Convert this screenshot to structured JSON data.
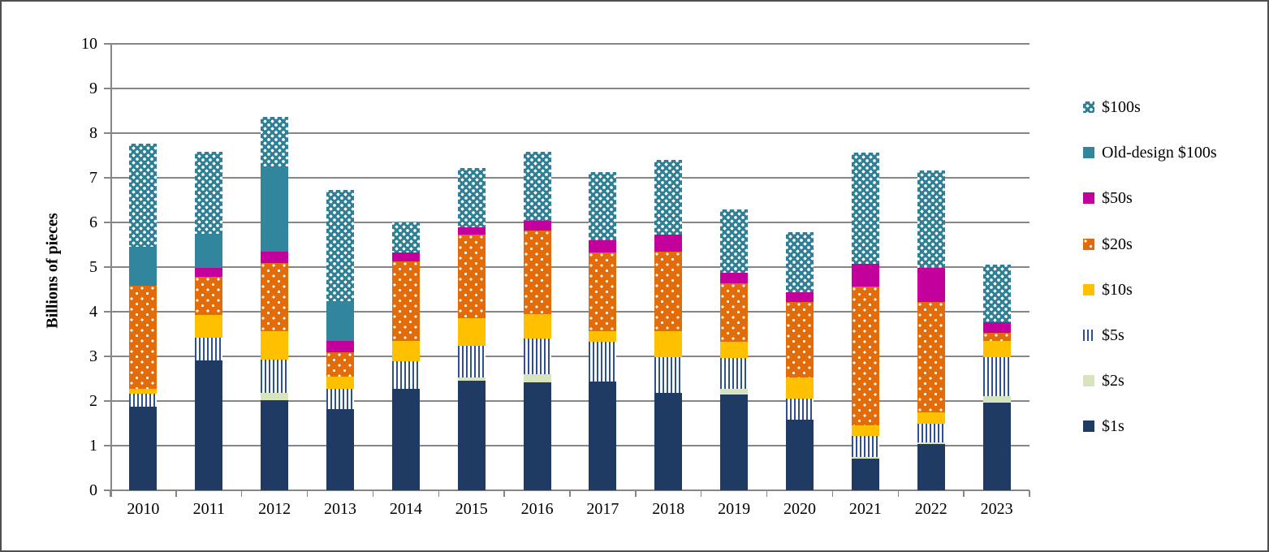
{
  "figure": {
    "y_axis_title": "Billions of pieces"
  },
  "colors": {
    "ones_navy": "#1f3b63",
    "twos_pale_green": "#d7e4bd",
    "fives_stripe_blue": "#2e5191",
    "tens_yellow": "#ffc000",
    "twenties_orange": "#e36c0a",
    "fifties_magenta": "#c4009c",
    "old_design_hundreds_teal": "#31859c",
    "hundreds_teal": "#2f8094",
    "gridline_gray": "#868686",
    "frame_gray": "#4f4f4f"
  },
  "chart_data": {
    "type": "bar",
    "stacked": true,
    "title": "",
    "xlabel": "",
    "ylabel": "Billions of pieces",
    "ylim": [
      0,
      10
    ],
    "y_tick_interval": 1,
    "grid": "horizontal",
    "legend_position": "right",
    "categories": [
      "2010",
      "2011",
      "2012",
      "2013",
      "2014",
      "2015",
      "2016",
      "2017",
      "2018",
      "2019",
      "2020",
      "2021",
      "2022",
      "2023"
    ],
    "series": [
      {
        "name": "$1s",
        "pattern": "solid",
        "color": "#1f3b63",
        "values": [
          1.87,
          2.9,
          2.01,
          1.81,
          2.28,
          2.46,
          2.41,
          2.43,
          2.19,
          2.14,
          1.58,
          0.7,
          1.03,
          1.97
        ]
      },
      {
        "name": "$2s",
        "pattern": "solid",
        "color": "#d7e4bd",
        "values": [
          0,
          0,
          0.18,
          0,
          0,
          0.06,
          0.19,
          0,
          0,
          0.14,
          0,
          0.05,
          0.05,
          0.14
        ]
      },
      {
        "name": "$5s",
        "pattern": "vertical-stripes",
        "color": "#2e5191",
        "values": [
          0.29,
          0.52,
          0.73,
          0.47,
          0.62,
          0.72,
          0.8,
          0.9,
          0.8,
          0.69,
          0.47,
          0.47,
          0.41,
          0.88
        ]
      },
      {
        "name": "$10s",
        "pattern": "solid",
        "color": "#ffc000",
        "values": [
          0.12,
          0.51,
          0.64,
          0.27,
          0.44,
          0.61,
          0.54,
          0.23,
          0.57,
          0.36,
          0.47,
          0.23,
          0.26,
          0.35
        ]
      },
      {
        "name": "$20s",
        "pattern": "white-dots-sparse",
        "color": "#e36c0a",
        "values": [
          2.3,
          0.85,
          1.54,
          0.55,
          1.79,
          1.87,
          1.88,
          1.76,
          1.78,
          1.31,
          1.7,
          3.12,
          2.47,
          0.18
        ]
      },
      {
        "name": "$50s",
        "pattern": "solid",
        "color": "#c4009c",
        "values": [
          0,
          0.21,
          0.24,
          0.24,
          0.19,
          0.17,
          0.22,
          0.28,
          0.39,
          0.23,
          0.21,
          0.5,
          0.76,
          0.24
        ]
      },
      {
        "name": "Old-design $100s",
        "pattern": "solid",
        "color": "#31859c",
        "values": [
          0.87,
          0.75,
          1.91,
          0.9,
          0,
          0,
          0,
          0,
          0,
          0,
          0,
          0,
          0,
          0
        ]
      },
      {
        "name": "$100s",
        "pattern": "white-dots-dense",
        "color": "#2f8094",
        "values": [
          2.32,
          1.85,
          1.12,
          2.49,
          0.68,
          1.33,
          1.54,
          1.52,
          1.67,
          1.43,
          1.36,
          2.5,
          2.18,
          1.3
        ]
      }
    ],
    "legend_entries_top_to_bottom": [
      "$100s",
      "Old-design $100s",
      "$50s",
      "$20s",
      "$10s",
      "$5s",
      "$2s",
      "$1s"
    ]
  }
}
